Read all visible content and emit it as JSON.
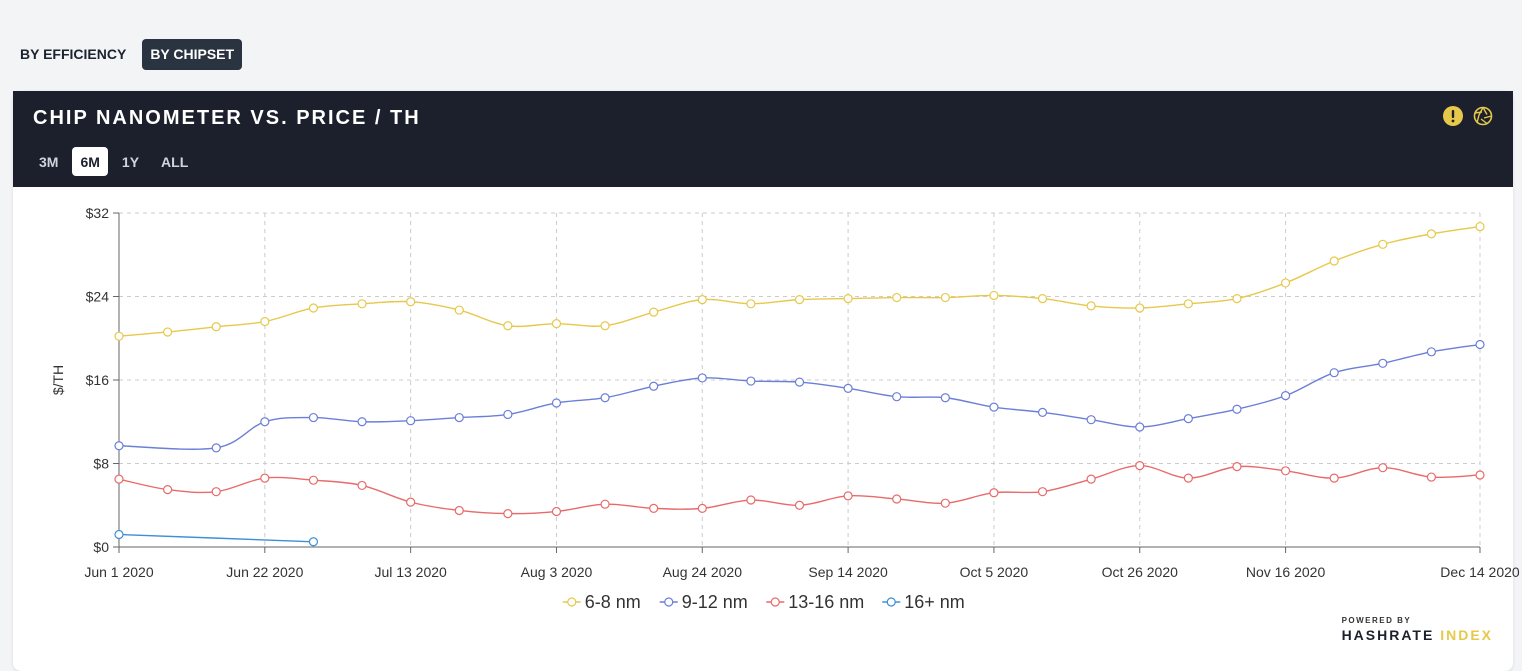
{
  "toggles": [
    {
      "label": "BY EFFICIENCY",
      "active": false
    },
    {
      "label": "BY CHIPSET",
      "active": true
    }
  ],
  "card": {
    "title": "CHIP NANOMETER VS. PRICE / TH",
    "ranges": [
      {
        "label": "3M",
        "active": false
      },
      {
        "label": "6M",
        "active": true
      },
      {
        "label": "1Y",
        "active": false
      },
      {
        "label": "ALL",
        "active": false
      }
    ],
    "icons": [
      "alert-icon",
      "camera-aperture-icon"
    ],
    "colors": {
      "header_bg": "#1b202c",
      "alert": "#e7c84b"
    }
  },
  "branding": {
    "powered_by": "POWERED BY",
    "brand_main": "HASHRATE",
    "brand_accent": "INDEX"
  },
  "chart_data": {
    "type": "line",
    "xlabel": "",
    "ylabel": "$/TH",
    "ylim": [
      0,
      32
    ],
    "yticks": [
      0,
      8,
      16,
      24,
      32
    ],
    "ytick_labels": [
      "$0",
      "$8",
      "$16",
      "$24",
      "$32"
    ],
    "x": [
      "2020-06-01",
      "2020-06-08",
      "2020-06-15",
      "2020-06-22",
      "2020-06-29",
      "2020-07-06",
      "2020-07-13",
      "2020-07-20",
      "2020-07-27",
      "2020-08-03",
      "2020-08-10",
      "2020-08-17",
      "2020-08-24",
      "2020-08-31",
      "2020-09-07",
      "2020-09-14",
      "2020-09-21",
      "2020-09-28",
      "2020-10-05",
      "2020-10-12",
      "2020-10-19",
      "2020-10-26",
      "2020-11-02",
      "2020-11-09",
      "2020-11-16",
      "2020-11-23",
      "2020-11-30",
      "2020-12-07",
      "2020-12-14"
    ],
    "xticks": [
      "Jun 1 2020",
      "Jun 22 2020",
      "Jul 13 2020",
      "Aug 3 2020",
      "Aug 24 2020",
      "Sep 14 2020",
      "Oct 5 2020",
      "Oct 26 2020",
      "Nov 16 2020",
      "Dec 14 2020"
    ],
    "xtick_index": [
      0,
      3,
      6,
      9,
      12,
      15,
      18,
      21,
      24,
      28
    ],
    "grid": true,
    "legend_position": "bottom-center",
    "series": [
      {
        "name": "6-8 nm",
        "color": "#e7c84b",
        "values": [
          20.2,
          20.6,
          21.1,
          21.6,
          22.9,
          23.3,
          23.5,
          22.7,
          21.2,
          21.4,
          21.2,
          22.5,
          23.7,
          23.3,
          23.7,
          23.8,
          23.9,
          23.9,
          24.1,
          23.8,
          23.1,
          22.9,
          23.3,
          23.8,
          25.3,
          27.4,
          29.0,
          30.0,
          30.7
        ]
      },
      {
        "name": "9-12 nm",
        "color": "#6b7fd7",
        "values": [
          9.7,
          null,
          9.5,
          12.0,
          12.4,
          12.0,
          12.1,
          12.4,
          12.7,
          13.8,
          14.3,
          15.4,
          16.2,
          15.9,
          15.8,
          15.2,
          14.4,
          14.3,
          13.4,
          12.9,
          12.2,
          11.5,
          12.3,
          13.2,
          14.5,
          16.7,
          17.6,
          18.7,
          19.4
        ]
      },
      {
        "name": "13-16 nm",
        "color": "#e86a6a",
        "values": [
          6.5,
          5.5,
          5.3,
          6.6,
          6.4,
          5.9,
          4.3,
          3.5,
          3.2,
          3.4,
          4.1,
          3.7,
          3.7,
          4.5,
          4.0,
          4.9,
          4.6,
          4.2,
          5.2,
          5.3,
          6.5,
          7.8,
          6.6,
          7.7,
          7.3,
          6.6,
          7.6,
          6.7,
          6.9
        ]
      },
      {
        "name": "16+ nm",
        "color": "#3d8fd6",
        "values": [
          1.2,
          null,
          null,
          null,
          0.5,
          null,
          null,
          null,
          null,
          null,
          null,
          null,
          null,
          null,
          null,
          null,
          null,
          null,
          null,
          null,
          null,
          null,
          null,
          null,
          null,
          null,
          null,
          null,
          null
        ]
      }
    ]
  }
}
